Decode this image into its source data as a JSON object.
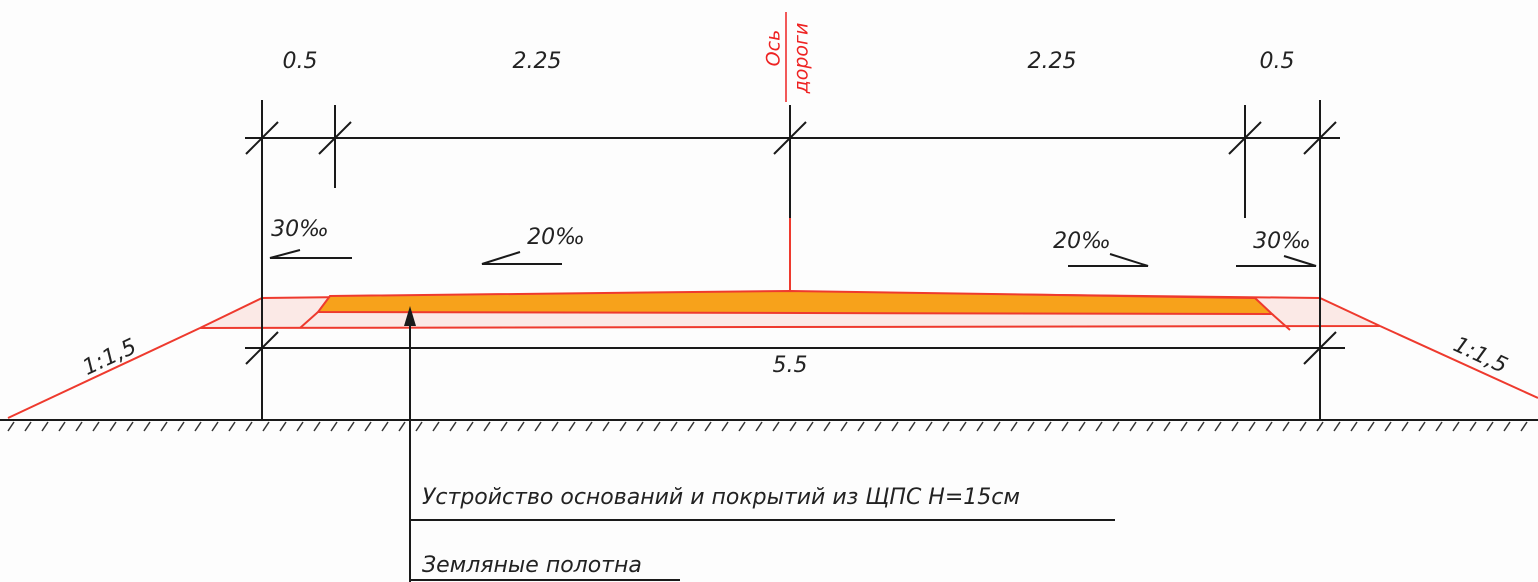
{
  "dimensions": {
    "top": [
      "0.5",
      "2.25",
      "2.25",
      "0.5"
    ],
    "bottom": "5.5"
  },
  "slopes": [
    "30‰",
    "20‰",
    "20‰",
    "30‰"
  ],
  "side_slopes": [
    "1:1,5",
    "1:1,5"
  ],
  "axis_label": [
    "Ось",
    "дороги"
  ],
  "callouts": [
    "Устройство оснований и покрытий из ЩПС Н=15см",
    "Земляные полотна"
  ]
}
